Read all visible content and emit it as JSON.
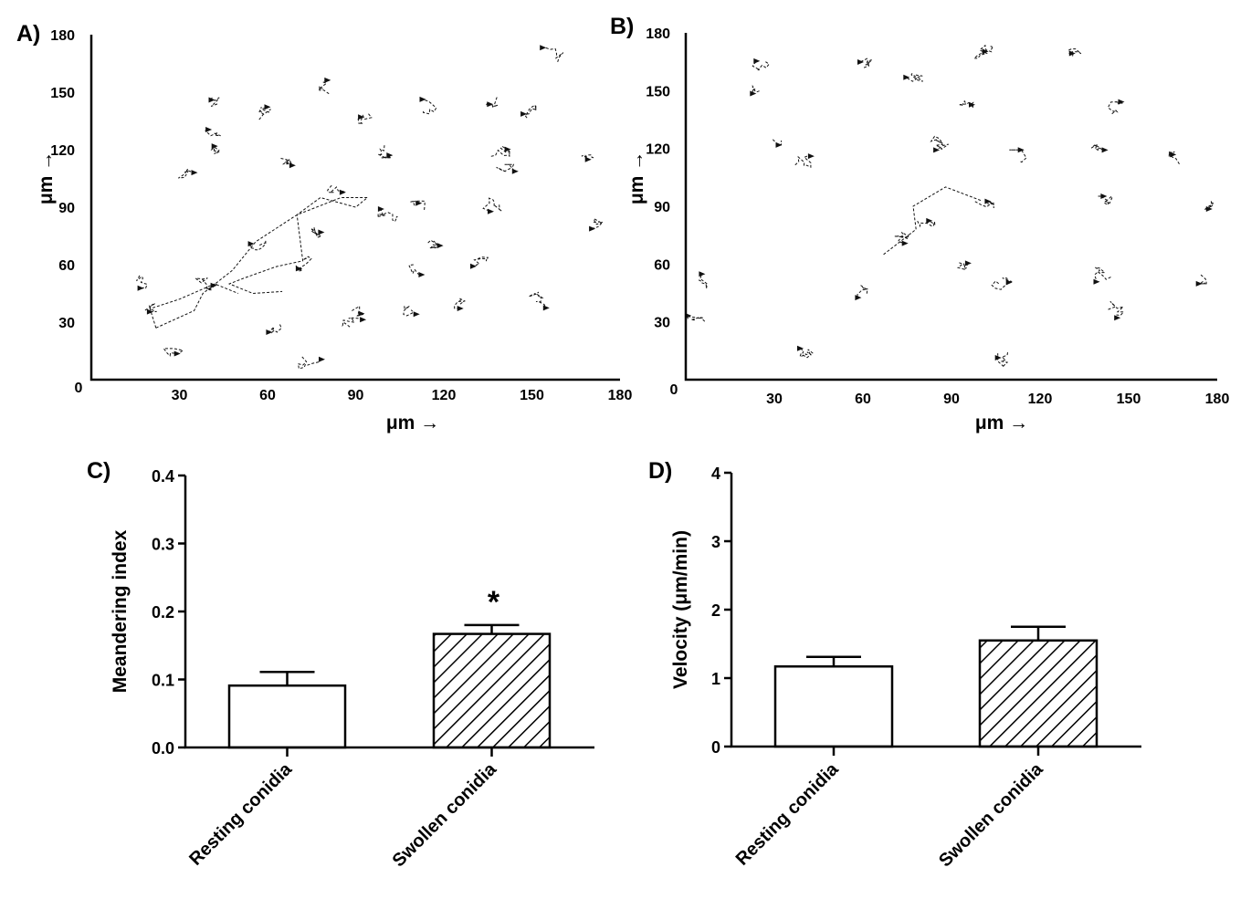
{
  "chart_data": [
    {
      "id": "A",
      "panel_label": "A)",
      "type": "scatter",
      "description": "cell migration tracks (resting conidia)",
      "xlabel": "μm →",
      "ylabel": "μm →",
      "xlim": [
        0,
        180
      ],
      "ylim": [
        0,
        180
      ],
      "origin_label": "0",
      "xticks": [
        "30",
        "60",
        "90",
        "120",
        "150",
        "180"
      ],
      "yticks": [
        "30",
        "60",
        "90",
        "120",
        "150",
        "180"
      ],
      "track_centers": [
        [
          44,
          143
        ],
        [
          59,
          137
        ],
        [
          40,
          130
        ],
        [
          82,
          152
        ],
        [
          92,
          139
        ],
        [
          113,
          141
        ],
        [
          136,
          147
        ],
        [
          147,
          138
        ],
        [
          158,
          168
        ],
        [
          41,
          120
        ],
        [
          64,
          117
        ],
        [
          34,
          109
        ],
        [
          102,
          121
        ],
        [
          138,
          119
        ],
        [
          142,
          107
        ],
        [
          170,
          118
        ],
        [
          84,
          103
        ],
        [
          76,
          78
        ],
        [
          102,
          87
        ],
        [
          113,
          88
        ],
        [
          116,
          74
        ],
        [
          137,
          93
        ],
        [
          171,
          84
        ],
        [
          18,
          53
        ],
        [
          39,
          52
        ],
        [
          55,
          73
        ],
        [
          74,
          62
        ],
        [
          108,
          60
        ],
        [
          131,
          61
        ],
        [
          152,
          42
        ],
        [
          63,
          30
        ],
        [
          91,
          37
        ],
        [
          108,
          37
        ],
        [
          128,
          39
        ],
        [
          88,
          27
        ],
        [
          29,
          11
        ],
        [
          74,
          11
        ],
        [
          20,
          37
        ]
      ],
      "long_tracks": [
        [
          [
            22,
            27
          ],
          [
            35,
            36
          ],
          [
            38,
            45
          ],
          [
            48,
            57
          ],
          [
            56,
            72
          ],
          [
            70,
            86
          ],
          [
            85,
            95
          ],
          [
            94,
            95
          ],
          [
            90,
            90
          ],
          [
            78,
            95
          ],
          [
            70,
            86
          ],
          [
            72,
            62
          ],
          [
            63,
            59
          ],
          [
            52,
            53
          ],
          [
            47,
            50
          ],
          [
            55,
            45
          ],
          [
            65,
            46
          ]
        ],
        [
          [
            22,
            27
          ],
          [
            20,
            37
          ],
          [
            30,
            42
          ],
          [
            42,
            50
          ],
          [
            50,
            45
          ]
        ]
      ]
    },
    {
      "id": "B",
      "panel_label": "B)",
      "type": "scatter",
      "description": "cell migration tracks (swollen conidia)",
      "xlabel": "μm →",
      "ylabel": "μm →",
      "xlim": [
        0,
        180
      ],
      "ylim": [
        0,
        180
      ],
      "origin_label": "0",
      "xticks": [
        "30",
        "60",
        "90",
        "120",
        "150",
        "180"
      ],
      "yticks": [
        "30",
        "60",
        "90",
        "120",
        "150",
        "180"
      ],
      "track_centers": [
        [
          25,
          166
        ],
        [
          60,
          164
        ],
        [
          76,
          160
        ],
        [
          102,
          172
        ],
        [
          130,
          170
        ],
        [
          27,
          147
        ],
        [
          28,
          127
        ],
        [
          93,
          144
        ],
        [
          145,
          139
        ],
        [
          138,
          121
        ],
        [
          85,
          122
        ],
        [
          38,
          112
        ],
        [
          112,
          114
        ],
        [
          168,
          113
        ],
        [
          180,
          93
        ],
        [
          140,
          90
        ],
        [
          80,
          85
        ],
        [
          100,
          92
        ],
        [
          75,
          76
        ],
        [
          95,
          59
        ],
        [
          108,
          52
        ],
        [
          143,
          53
        ],
        [
          172,
          55
        ],
        [
          5,
          51
        ],
        [
          62,
          45
        ],
        [
          145,
          37
        ],
        [
          5,
          28
        ],
        [
          43,
          11
        ],
        [
          110,
          12
        ]
      ],
      "long_tracks": [
        [
          [
            67,
            65
          ],
          [
            78,
            78
          ],
          [
            77,
            90
          ],
          [
            88,
            100
          ],
          [
            100,
            93
          ]
        ]
      ]
    },
    {
      "id": "C",
      "panel_label": "C)",
      "type": "bar",
      "categories": [
        "Resting conidia",
        "Swollen conidia"
      ],
      "values": [
        0.091,
        0.167
      ],
      "errors": [
        0.02,
        0.013
      ],
      "patterns": [
        "open",
        "hatched"
      ],
      "significance": [
        "",
        "*"
      ],
      "ylabel": "Meandering index",
      "ylim": [
        0,
        0.4
      ],
      "yticks": [
        "0.0",
        "0.1",
        "0.2",
        "0.3",
        "0.4"
      ]
    },
    {
      "id": "D",
      "panel_label": "D)",
      "type": "bar",
      "categories": [
        "Resting conidia",
        "Swollen conidia"
      ],
      "values": [
        1.17,
        1.55
      ],
      "errors": [
        0.14,
        0.2
      ],
      "patterns": [
        "open",
        "hatched"
      ],
      "significance": [
        "",
        ""
      ],
      "ylabel": "Velocity (μm/min)",
      "ylim": [
        0,
        4
      ],
      "yticks": [
        "0",
        "1",
        "2",
        "3",
        "4"
      ]
    }
  ]
}
